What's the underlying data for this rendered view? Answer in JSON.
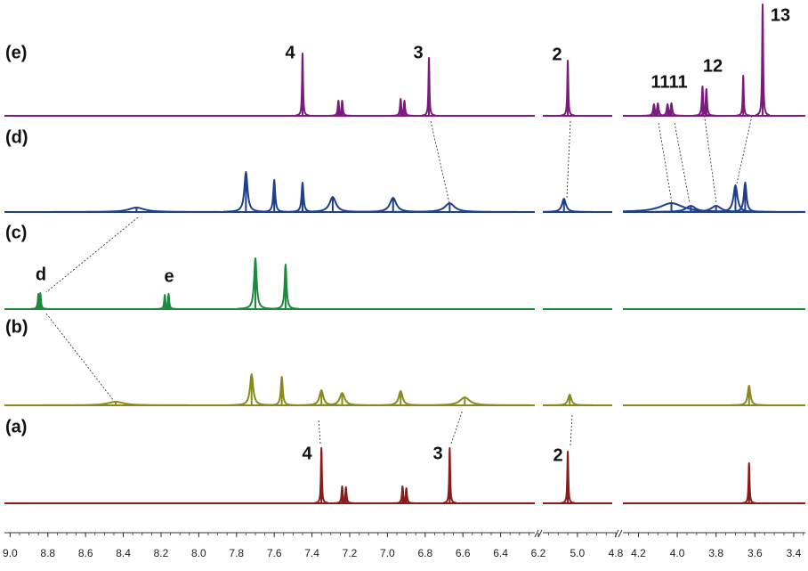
{
  "chart_data": {
    "type": "nmr",
    "x_segments": [
      {
        "xlim": [
          9.03,
          6.2
        ],
        "xticks": [
          {
            "value": 9,
            "label": "9.0"
          },
          8.8,
          8.6,
          8.4,
          8.2,
          {
            "value": 8,
            "label": "8.0"
          },
          7.8,
          7.6,
          7.4,
          7.2,
          {
            "value": 7,
            "label": "7.0"
          },
          6.8,
          6.6,
          6.4,
          6.2
        ]
      },
      {
        "xlim": [
          5.18,
          4.8
        ],
        "xticks": [
          {
            "value": 5,
            "label": "5.0"
          },
          4.8
        ]
      },
      {
        "xlim": [
          4.28,
          3.34
        ],
        "xticks": [
          4.2,
          {
            "value": 4,
            "label": "4.0"
          },
          3.8,
          3.6,
          3.4
        ]
      }
    ],
    "series": [
      {
        "name": "(e)",
        "color": "#7a1a7c",
        "peaks": [
          {
            "ppm": 7.45,
            "height": 70,
            "width": 0.003
          },
          {
            "ppm": 7.26,
            "height": 17,
            "width": 0.004
          },
          {
            "ppm": 7.24,
            "height": 17,
            "width": 0.004
          },
          {
            "ppm": 6.93,
            "height": 19,
            "width": 0.004
          },
          {
            "ppm": 6.91,
            "height": 17,
            "width": 0.004
          },
          {
            "ppm": 6.78,
            "height": 65,
            "width": 0.003
          },
          {
            "ppm": 5.05,
            "height": 62,
            "width": 0.003
          },
          {
            "ppm": 4.12,
            "height": 13,
            "width": 0.005
          },
          {
            "ppm": 4.1,
            "height": 14,
            "width": 0.005
          },
          {
            "ppm": 4.05,
            "height": 13,
            "width": 0.005
          },
          {
            "ppm": 4.03,
            "height": 14,
            "width": 0.005
          },
          {
            "ppm": 3.87,
            "height": 33,
            "width": 0.004
          },
          {
            "ppm": 3.85,
            "height": 30,
            "width": 0.004
          },
          {
            "ppm": 3.66,
            "height": 45,
            "width": 0.003
          },
          {
            "ppm": 3.56,
            "height": 125,
            "width": 0.003
          }
        ]
      },
      {
        "name": "(d)",
        "color": "#1f3f8c",
        "peaks": [
          {
            "ppm": 8.33,
            "height": 5,
            "width": 0.05
          },
          {
            "ppm": 7.75,
            "height": 45,
            "width": 0.01
          },
          {
            "ppm": 7.6,
            "height": 36,
            "width": 0.006
          },
          {
            "ppm": 7.45,
            "height": 33,
            "width": 0.006
          },
          {
            "ppm": 7.29,
            "height": 17,
            "width": 0.02
          },
          {
            "ppm": 6.97,
            "height": 16,
            "width": 0.02
          },
          {
            "ppm": 6.67,
            "height": 10,
            "width": 0.03
          },
          {
            "ppm": 5.07,
            "height": 15,
            "width": 0.012
          },
          {
            "ppm": 4.03,
            "height": 10,
            "width": 0.07
          },
          {
            "ppm": 3.93,
            "height": 7,
            "width": 0.03
          },
          {
            "ppm": 3.8,
            "height": 7,
            "width": 0.03
          },
          {
            "ppm": 3.7,
            "height": 30,
            "width": 0.012
          },
          {
            "ppm": 3.65,
            "height": 33,
            "width": 0.008
          }
        ]
      },
      {
        "name": "(c)",
        "color": "#1c8a3c",
        "peaks": [
          {
            "ppm": 8.85,
            "height": 17,
            "width": 0.004
          },
          {
            "ppm": 8.84,
            "height": 18,
            "width": 0.004
          },
          {
            "ppm": 8.18,
            "height": 16,
            "width": 0.004
          },
          {
            "ppm": 8.16,
            "height": 17,
            "width": 0.004
          },
          {
            "ppm": 7.7,
            "height": 57,
            "width": 0.008
          },
          {
            "ppm": 7.54,
            "height": 50,
            "width": 0.006
          }
        ]
      },
      {
        "name": "(b)",
        "color": "#8a8a1c",
        "peaks": [
          {
            "ppm": 8.44,
            "height": 4,
            "width": 0.05
          },
          {
            "ppm": 7.72,
            "height": 35,
            "width": 0.01
          },
          {
            "ppm": 7.56,
            "height": 32,
            "width": 0.006
          },
          {
            "ppm": 7.35,
            "height": 17,
            "width": 0.012
          },
          {
            "ppm": 7.24,
            "height": 14,
            "width": 0.015
          },
          {
            "ppm": 6.93,
            "height": 16,
            "width": 0.012
          },
          {
            "ppm": 6.59,
            "height": 9,
            "width": 0.03
          },
          {
            "ppm": 5.04,
            "height": 12,
            "width": 0.01
          },
          {
            "ppm": 3.63,
            "height": 22,
            "width": 0.008
          }
        ]
      },
      {
        "name": "(a)",
        "color": "#8b1a1a",
        "peaks": [
          {
            "ppm": 7.35,
            "height": 62,
            "width": 0.003
          },
          {
            "ppm": 7.24,
            "height": 19,
            "width": 0.004
          },
          {
            "ppm": 7.22,
            "height": 18,
            "width": 0.004
          },
          {
            "ppm": 6.92,
            "height": 19,
            "width": 0.004
          },
          {
            "ppm": 6.9,
            "height": 17,
            "width": 0.004
          },
          {
            "ppm": 6.67,
            "height": 62,
            "width": 0.003
          },
          {
            "ppm": 5.05,
            "height": 58,
            "width": 0.003
          },
          {
            "ppm": 3.63,
            "height": 45,
            "width": 0.003
          }
        ]
      }
    ],
    "annotations": [
      "4",
      "3",
      "2",
      "1111",
      "12",
      "13",
      "d",
      "e",
      "4",
      "3",
      "2"
    ]
  }
}
